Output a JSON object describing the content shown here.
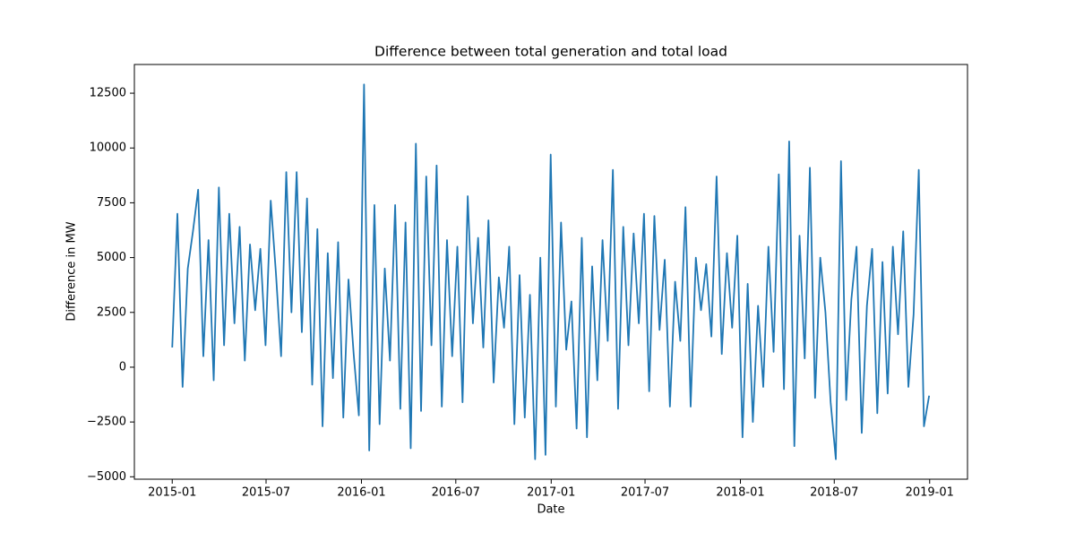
{
  "chart_data": {
    "type": "line",
    "title": "Difference between total generation and total load",
    "x_label": "Date",
    "y_label": "Difference in MW",
    "x": [
      0,
      10,
      20,
      30,
      40,
      50,
      60,
      70,
      80,
      90,
      100,
      110,
      120,
      130,
      140,
      150,
      160,
      170,
      180,
      190,
      200,
      210,
      220,
      230,
      240,
      250,
      260,
      270,
      280,
      290,
      300,
      310,
      320,
      330,
      340,
      350,
      360,
      370,
      380,
      390,
      400,
      410,
      420,
      430,
      440,
      450,
      460,
      470,
      480,
      490,
      500,
      510,
      520,
      530,
      540,
      550,
      560,
      570,
      580,
      590,
      600,
      610,
      620,
      630,
      640,
      650,
      660,
      670,
      680,
      690,
      700,
      710,
      720,
      730,
      740,
      750,
      760,
      770,
      780,
      790,
      800,
      810,
      820,
      830,
      840,
      850,
      860,
      870,
      880,
      890,
      900,
      910,
      920,
      930,
      940,
      950,
      960,
      970,
      980,
      990,
      1000,
      1010,
      1020,
      1030,
      1040,
      1050,
      1060,
      1070,
      1080,
      1090,
      1100,
      1110,
      1120,
      1130,
      1140,
      1150,
      1160,
      1170,
      1180,
      1190,
      1200,
      1210,
      1220,
      1230,
      1240,
      1250,
      1260,
      1270,
      1280,
      1290,
      1300,
      1310,
      1320,
      1330,
      1340,
      1350,
      1360,
      1370,
      1380,
      1390,
      1400,
      1410,
      1420,
      1430,
      1440,
      1450,
      1460
    ],
    "series": [
      {
        "name": "Difference",
        "color": "#1f77b4",
        "values": [
          900,
          7000,
          -900,
          4500,
          6200,
          8100,
          500,
          5800,
          -600,
          8200,
          1000,
          7000,
          2000,
          6400,
          300,
          5600,
          2600,
          5400,
          1000,
          7600,
          4300,
          500,
          8900,
          2500,
          8900,
          1600,
          7700,
          -800,
          6300,
          -2700,
          5200,
          -500,
          5700,
          -2300,
          4000,
          600,
          -2200,
          12900,
          -3800,
          7400,
          -2600,
          4500,
          300,
          7400,
          -1900,
          6600,
          -3700,
          10200,
          -2000,
          8700,
          1000,
          9200,
          -1800,
          5800,
          500,
          5500,
          -1600,
          7800,
          2000,
          5900,
          900,
          6700,
          -700,
          4100,
          1800,
          5500,
          -2600,
          4200,
          -2300,
          3300,
          -4200,
          5000,
          -4000,
          9700,
          -1800,
          6600,
          800,
          3000,
          -2800,
          5900,
          -3200,
          4600,
          -600,
          5800,
          1200,
          9000,
          -1900,
          6400,
          1000,
          6100,
          2000,
          7000,
          -1100,
          6900,
          1700,
          4900,
          -1800,
          3900,
          1200,
          7300,
          -1800,
          5000,
          2600,
          4700,
          1400,
          8700,
          600,
          5200,
          1800,
          6000,
          -3200,
          3800,
          -2500,
          2800,
          -900,
          5500,
          700,
          8800,
          -1000,
          10300,
          -3600,
          6000,
          400,
          9100,
          -1400,
          5000,
          2500,
          -1600,
          -4200,
          9400,
          -1500,
          3100,
          5500,
          -3000,
          2800,
          5400,
          -2100,
          4800,
          -1200,
          5500,
          1500,
          6200,
          -900,
          2400,
          9000,
          -2700,
          -1300
        ]
      }
    ],
    "xlim": [
      -73,
      1534
    ],
    "xticks": [
      {
        "value": 0,
        "label": "2015-01"
      },
      {
        "value": 181,
        "label": "2015-07"
      },
      {
        "value": 365,
        "label": "2016-01"
      },
      {
        "value": 547,
        "label": "2016-07"
      },
      {
        "value": 731,
        "label": "2017-01"
      },
      {
        "value": 912,
        "label": "2017-07"
      },
      {
        "value": 1096,
        "label": "2018-01"
      },
      {
        "value": 1277,
        "label": "2018-07"
      },
      {
        "value": 1461,
        "label": "2019-01"
      }
    ],
    "ylim": [
      -5110,
      13810
    ],
    "yticks": [
      {
        "value": -5000,
        "label": "−5000"
      },
      {
        "value": -2500,
        "label": "−2500"
      },
      0,
      2500,
      5000,
      7500,
      10000,
      12500
    ],
    "grid": false
  }
}
